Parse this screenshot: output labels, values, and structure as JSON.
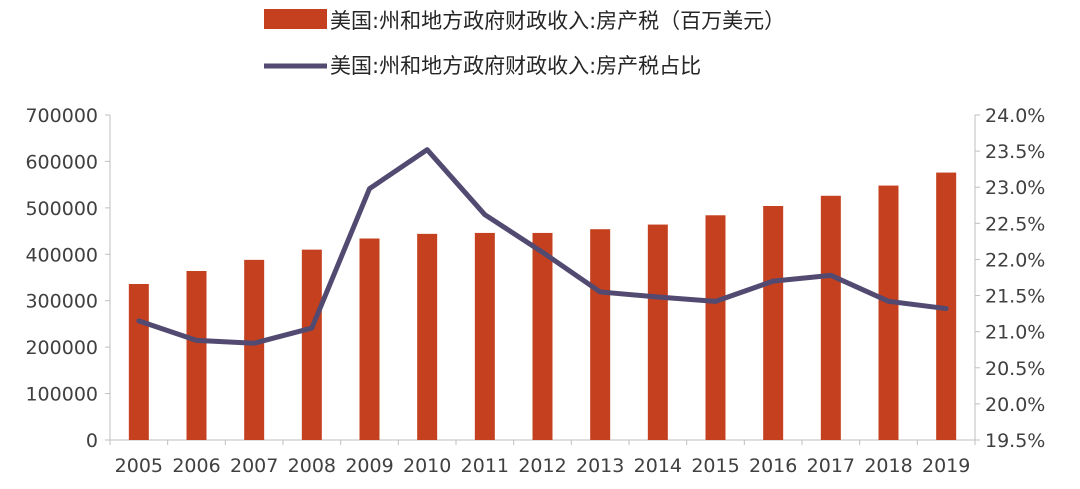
{
  "chart_data": {
    "type": "bar+line",
    "categories": [
      "2005",
      "2006",
      "2007",
      "2008",
      "2009",
      "2010",
      "2011",
      "2012",
      "2013",
      "2014",
      "2015",
      "2016",
      "2017",
      "2018",
      "2019"
    ],
    "series": [
      {
        "name": "美国:州和地方政府财政收入:房产税（百万美元）",
        "type": "bar",
        "axis": "left",
        "color": "#C5401F",
        "values": [
          336000,
          364000,
          388000,
          410000,
          434000,
          444000,
          446000,
          446000,
          454000,
          464000,
          484000,
          504000,
          526000,
          548000,
          576000
        ]
      },
      {
        "name": "美国:州和地方政府财政收入:房产税占比",
        "type": "line",
        "axis": "right",
        "color": "#524A70",
        "values": [
          21.15,
          20.88,
          20.84,
          21.05,
          22.98,
          23.52,
          22.62,
          22.1,
          21.55,
          21.48,
          21.42,
          21.7,
          21.78,
          21.42,
          21.32
        ]
      }
    ],
    "left_axis": {
      "ylim": [
        0,
        700000
      ],
      "ticks": [
        "0",
        "100000",
        "200000",
        "300000",
        "400000",
        "500000",
        "600000",
        "700000"
      ]
    },
    "right_axis": {
      "ylim": [
        19.5,
        24.0
      ],
      "ticks": [
        "19.5%",
        "20.0%",
        "20.5%",
        "21.0%",
        "21.5%",
        "22.0%",
        "22.5%",
        "23.0%",
        "23.5%",
        "24.0%"
      ]
    },
    "legend_position": "top"
  }
}
